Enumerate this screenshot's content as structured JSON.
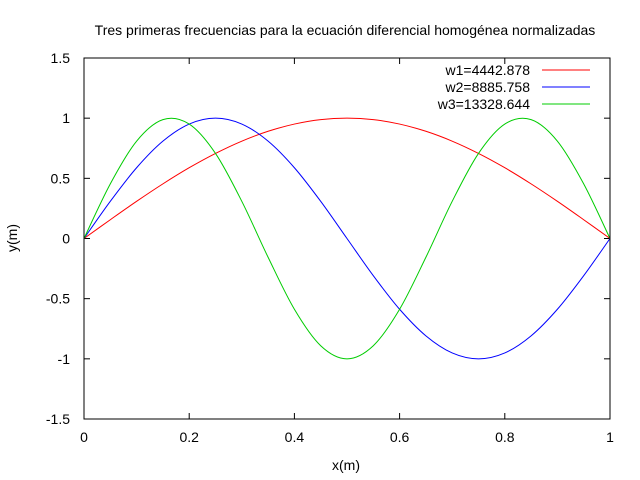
{
  "chart_data": {
    "type": "line",
    "title": "Tres primeras frecuencias para la ecuación diferencial homogénea normalizadas",
    "xlabel": "x(m)",
    "ylabel": "y(m)",
    "xlim": [
      0,
      1
    ],
    "ylim": [
      -1.5,
      1.5
    ],
    "xticks": [
      "0",
      "0.2",
      "0.4",
      "0.6",
      "0.8",
      "1"
    ],
    "yticks": [
      "1.5",
      "1",
      "0.5",
      "0",
      "-0.5",
      "-1",
      "-1.5"
    ],
    "grid": false,
    "legend_position": "top-right",
    "x": [
      0,
      0.05,
      0.1,
      0.15,
      0.2,
      0.25,
      0.3,
      0.35,
      0.4,
      0.45,
      0.5,
      0.55,
      0.6,
      0.65,
      0.7,
      0.75,
      0.8,
      0.85,
      0.9,
      0.95,
      1
    ],
    "series": [
      {
        "name": "w1=4442.878",
        "color": "#ff0000",
        "values": [
          0,
          0.156,
          0.309,
          0.454,
          0.588,
          0.707,
          0.809,
          0.891,
          0.951,
          0.988,
          1,
          0.988,
          0.951,
          0.891,
          0.809,
          0.707,
          0.588,
          0.454,
          0.309,
          0.156,
          0
        ]
      },
      {
        "name": "w2=8885.758",
        "color": "#0000ff",
        "values": [
          0,
          0.309,
          0.588,
          0.809,
          0.951,
          1,
          0.951,
          0.809,
          0.588,
          0.309,
          0,
          -0.309,
          -0.588,
          -0.809,
          -0.951,
          -1,
          -0.951,
          -0.809,
          -0.588,
          -0.309,
          0
        ]
      },
      {
        "name": "w3=13328.644",
        "color": "#00cc00",
        "values": [
          0,
          0.454,
          0.809,
          0.988,
          0.951,
          0.707,
          0.309,
          -0.156,
          -0.588,
          -0.891,
          -1,
          -0.891,
          -0.588,
          -0.156,
          0.309,
          0.707,
          0.951,
          0.988,
          0.809,
          0.454,
          0
        ]
      }
    ]
  }
}
